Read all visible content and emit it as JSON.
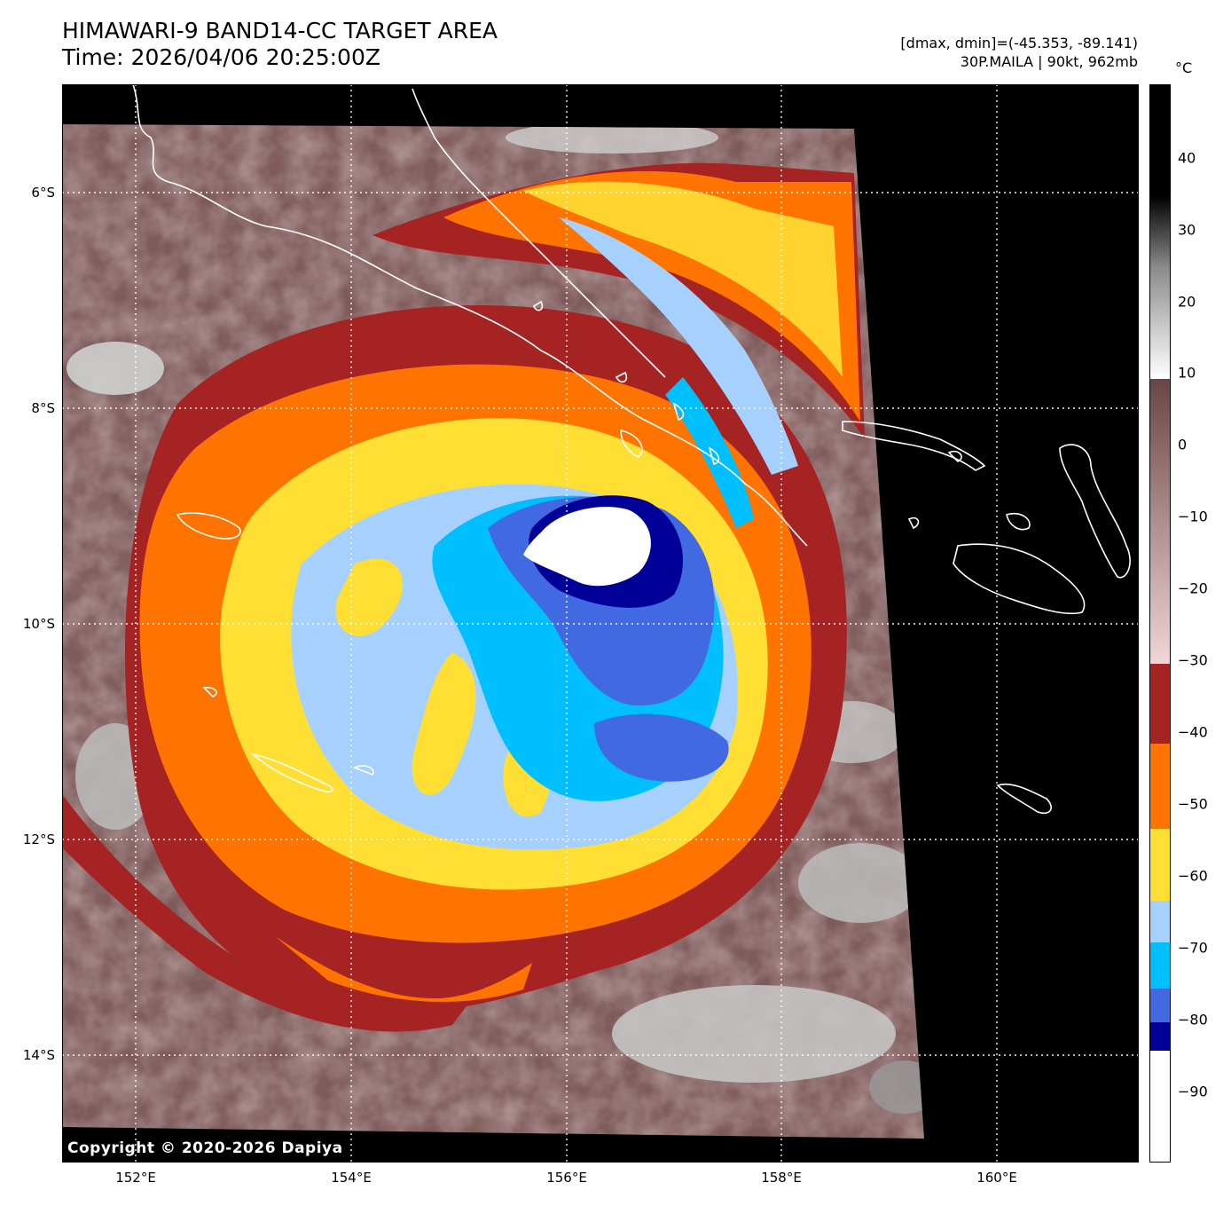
{
  "header": {
    "title_line1": "HIMAWARI-9 BAND14-CC TARGET AREA",
    "title_line2": "Time: 2026/04/06 20:25:00Z",
    "range_text": "[dmax, dmin]=(-45.353, -89.141)",
    "storm_text": "30P.MAILA | 90kt, 962mb"
  },
  "map": {
    "lat_labels": [
      "6°S",
      "8°S",
      "10°S",
      "12°S",
      "14°S"
    ],
    "lon_labels": [
      "152°E",
      "154°E",
      "156°E",
      "158°E",
      "160°E"
    ],
    "copyright": "Copyright © 2020-2026 Dapiya"
  },
  "colorbar": {
    "unit": "°C",
    "ticks": [
      "40",
      "30",
      "20",
      "10",
      "0",
      "−10",
      "−20",
      "−30",
      "−40",
      "−50",
      "−60",
      "−70",
      "−80",
      "−90"
    ],
    "colors": {
      "white": "#ffffff",
      "navy": "#000099",
      "royal_blue": "#4169e1",
      "sky_blue": "#00bfff",
      "light_blue": "#a6d1ff",
      "yellow": "#ffdf33",
      "orange": "#ff7300",
      "dark_red": "#a52323",
      "pink": "#f0d6d6",
      "brown": "#6b4545"
    }
  }
}
